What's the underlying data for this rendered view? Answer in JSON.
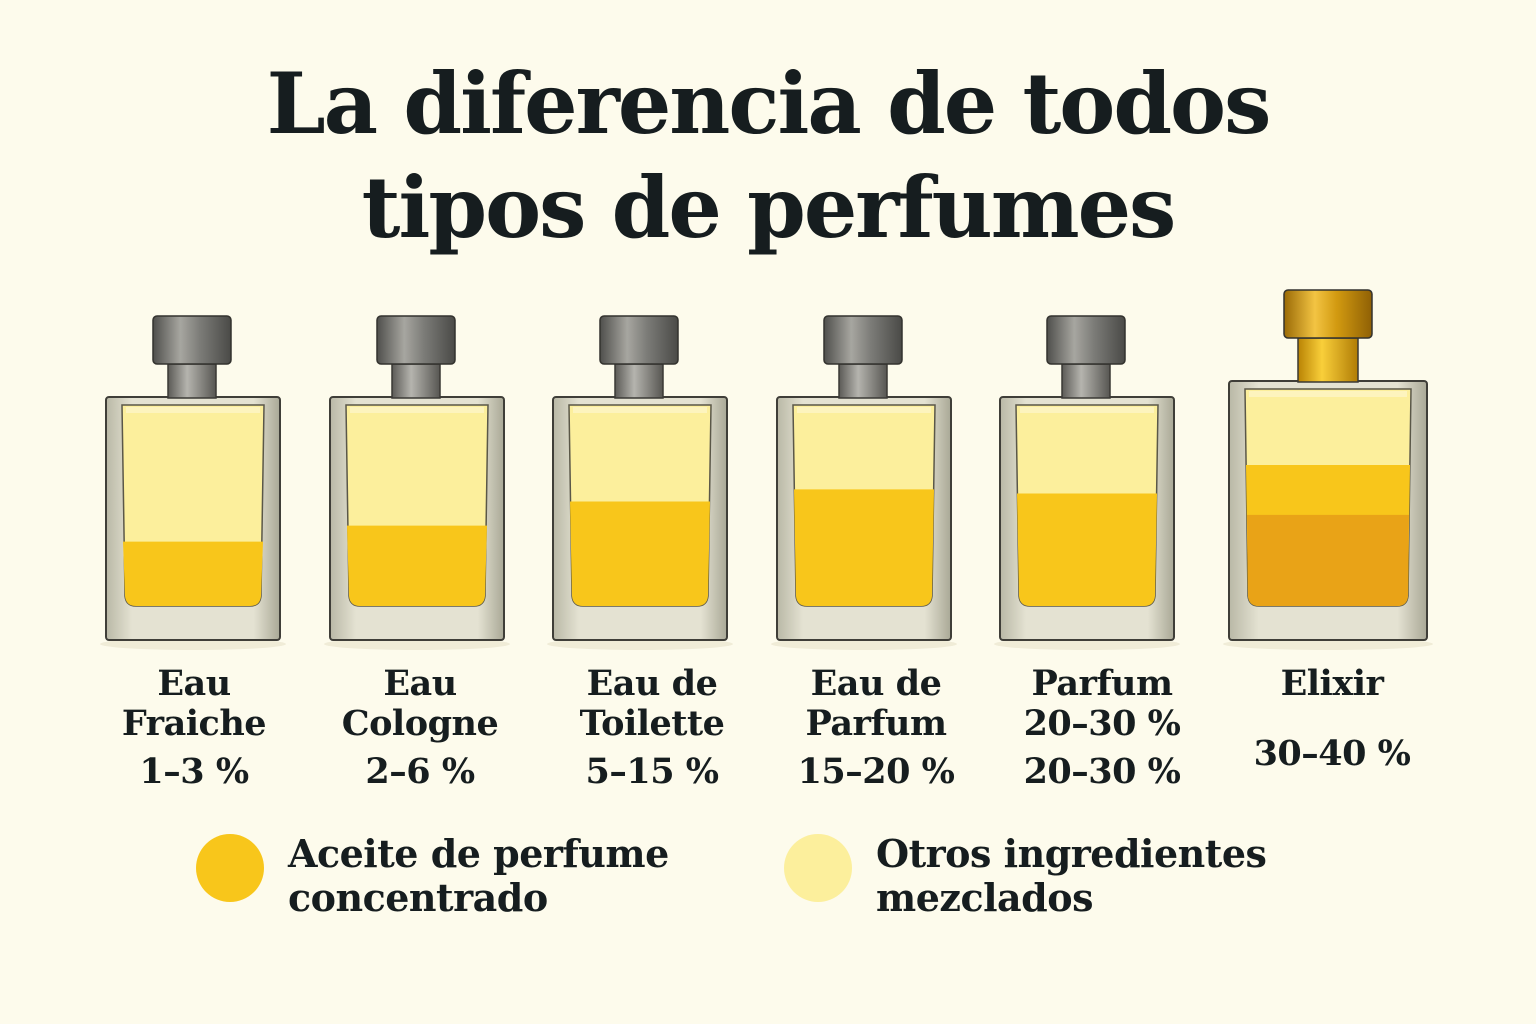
{
  "title": {
    "line1": "La diferencia de todos",
    "line2": "tipos de perfumes"
  },
  "colors": {
    "background": "#fdfbec",
    "concentrated": "#f8c61b",
    "other": "#fcef9c",
    "elixir_concentrated": "#e9a317",
    "cap_silver": "#7c7c78",
    "cap_gold": "#d29a10"
  },
  "bottles": [
    {
      "label_lines": [
        "Eau",
        "Fraiche"
      ],
      "percent": "1–3 %",
      "fill_fraction": 0.32,
      "cap": "silver"
    },
    {
      "label_lines": [
        "Eau",
        "Cologne"
      ],
      "percent": "2–6 %",
      "fill_fraction": 0.4,
      "cap": "silver"
    },
    {
      "label_lines": [
        "Eau de",
        "Toilette"
      ],
      "percent": "5–15 %",
      "fill_fraction": 0.52,
      "cap": "silver"
    },
    {
      "label_lines": [
        "Eau de",
        "Parfum"
      ],
      "percent": "15–20 %",
      "fill_fraction": 0.58,
      "cap": "silver"
    },
    {
      "label_lines": [
        "Parfum",
        "20–30 %"
      ],
      "percent": "20–30 %",
      "fill_fraction": 0.56,
      "cap": "silver"
    },
    {
      "label_lines": [
        "Elixir"
      ],
      "percent": "30–40 %",
      "fill_fraction": 0.65,
      "deep_fraction": 0.42,
      "cap": "gold"
    }
  ],
  "legend": {
    "concentrated": {
      "line1": "Aceite de perfume",
      "line2": "concentrado"
    },
    "other": {
      "line1": "Otros ingredientes",
      "line2": "mezclados"
    }
  }
}
